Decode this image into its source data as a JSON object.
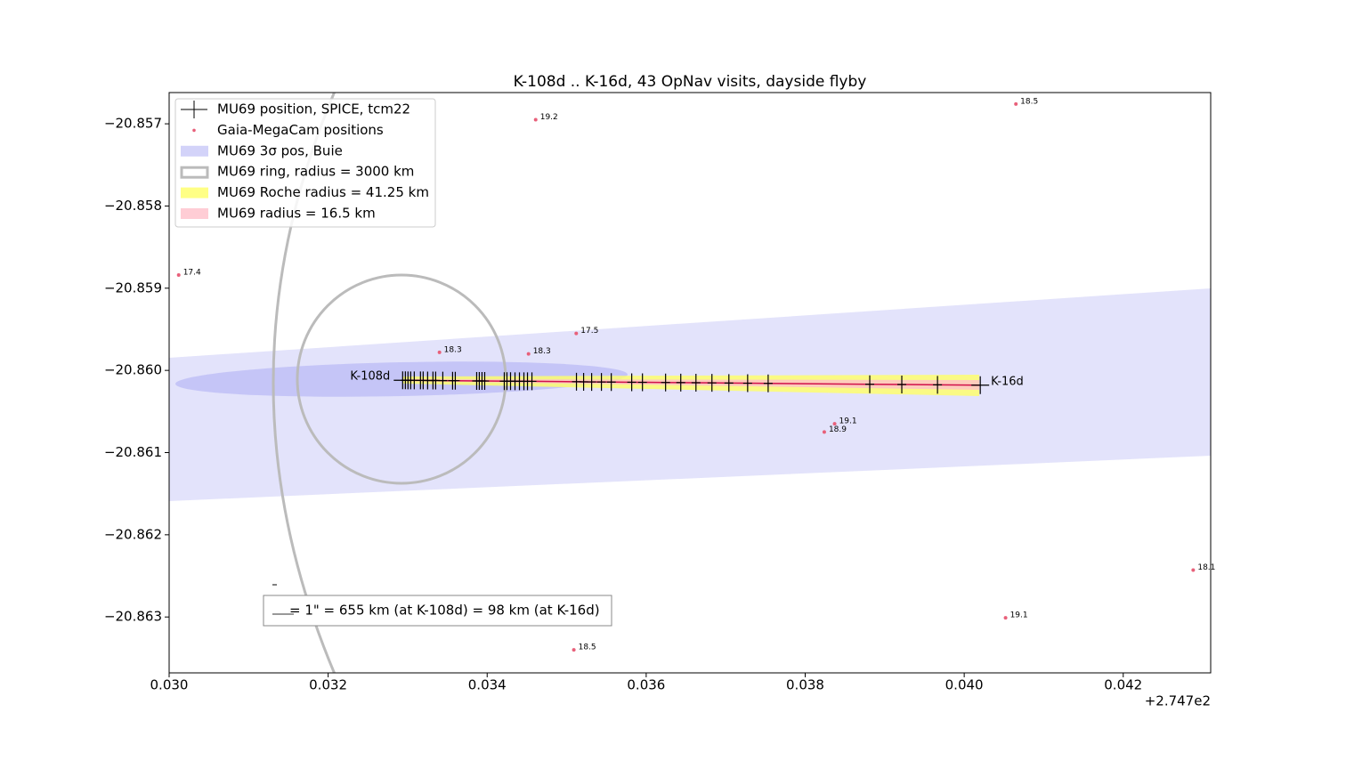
{
  "chart_data": {
    "type": "scatter",
    "title": "K-108d .. K-16d, 43 OpNav visits, dayside flyby",
    "xlim": [
      0.03,
      0.0431
    ],
    "ylim": [
      -20.86368,
      -20.85662
    ],
    "x_offset_label": "+2.747e2",
    "xticks": [
      {
        "value": 0.03,
        "label": "0.030"
      },
      {
        "value": 0.032,
        "label": "0.032"
      },
      {
        "value": 0.034,
        "label": "0.034"
      },
      {
        "value": 0.036,
        "label": "0.036"
      },
      {
        "value": 0.038,
        "label": "0.038"
      },
      {
        "value": 0.04,
        "label": "0.040"
      },
      {
        "value": 0.042,
        "label": "0.042"
      }
    ],
    "yticks": [
      {
        "value": -20.857,
        "label": "−20.857"
      },
      {
        "value": -20.858,
        "label": "−20.858"
      },
      {
        "value": -20.859,
        "label": "−20.859"
      },
      {
        "value": -20.86,
        "label": "−20.860"
      },
      {
        "value": -20.861,
        "label": "−20.861"
      },
      {
        "value": -20.862,
        "label": "−20.862"
      },
      {
        "value": -20.863,
        "label": "−20.863"
      }
    ],
    "series": [
      {
        "name": "MU69 position, SPICE, tcm22",
        "color": "#000000",
        "marker": "cross",
        "x": [
          0.032937,
          0.032971,
          0.033004,
          0.033038,
          0.033083,
          0.033161,
          0.033195,
          0.033251,
          0.033318,
          0.033352,
          0.033442,
          0.033565,
          0.033599,
          0.033868,
          0.033901,
          0.033935,
          0.033969,
          0.034215,
          0.034249,
          0.034294,
          0.03435,
          0.034406,
          0.034462,
          0.034507,
          0.034563,
          0.035123,
          0.035213,
          0.035314,
          0.035437,
          0.035561,
          0.035818,
          0.035953,
          0.036244,
          0.036435,
          0.036626,
          0.036827,
          0.03704,
          0.037276,
          0.037534,
          0.038812,
          0.039215,
          0.039664,
          0.040202
        ],
        "values": [
          -20.86012,
          -20.86012,
          -20.860121,
          -20.860121,
          -20.860121,
          -20.860122,
          -20.860122,
          -20.860123,
          -20.860123,
          -20.860123,
          -20.860124,
          -20.860125,
          -20.860125,
          -20.860128,
          -20.860128,
          -20.860128,
          -20.860129,
          -20.860131,
          -20.860131,
          -20.860131,
          -20.860132,
          -20.860132,
          -20.860133,
          -20.860133,
          -20.860133,
          -20.860138,
          -20.860139,
          -20.86014,
          -20.860141,
          -20.860142,
          -20.860144,
          -20.860145,
          -20.860147,
          -20.860149,
          -20.86015,
          -20.860152,
          -20.860154,
          -20.860156,
          -20.860158,
          -20.860169,
          -20.860172,
          -20.860176,
          -20.86018
        ]
      },
      {
        "name": "Gaia-MegaCam positions",
        "color": "#e8607a",
        "marker": "dot",
        "x": [
          0.04065,
          0.03461,
          0.03012,
          0.03512,
          0.0334,
          0.03452,
          0.03837,
          0.03824,
          0.04288,
          0.04052,
          0.03509
        ],
        "values": [
          -20.85676,
          -20.85695,
          -20.85884,
          -20.85955,
          -20.85978,
          -20.8598,
          -20.86065,
          -20.86075,
          -20.86243,
          -20.86301,
          -20.8634
        ],
        "point_labels": [
          "18.5",
          "19.2",
          "17.4",
          "17.5",
          "18.3",
          "18.3",
          "19.1",
          "18.9",
          "18.1",
          "19.1",
          "18.5"
        ]
      }
    ],
    "regions": [
      {
        "name": "MU69 3σ pos, Buie",
        "color": "#c8c8f8",
        "style": "fill"
      },
      {
        "name": "MU69 ring, radius = 3000 km",
        "color": "#bbbbbb",
        "style": "outline"
      },
      {
        "name": "MU69 Roche radius = 41.25 km",
        "color": "#ffff66",
        "style": "fill"
      },
      {
        "name": "MU69 radius = 16.5 km",
        "color": "#ffc0cb",
        "style": "fill"
      }
    ],
    "annotations": [
      "K-108d",
      "K-16d"
    ],
    "scale_note": "= 1\" = 655 km (at K-108d) = 98 km (at K-16d)"
  }
}
